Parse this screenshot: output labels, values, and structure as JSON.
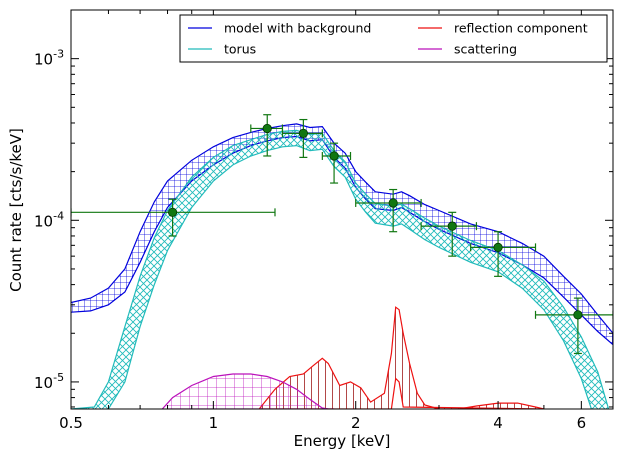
{
  "chart_data": {
    "type": "line",
    "title": "",
    "xlabel": "Energy [keV]",
    "ylabel": "Count rate [cts/s/keV]",
    "x_scale": "log",
    "y_scale": "log",
    "xlim": [
      0.5,
      7.0
    ],
    "ylim": [
      6.8e-06,
      0.002
    ],
    "grid": false,
    "legend_position": "top-right",
    "x_ticks": [
      {
        "value": 0.5,
        "label": "0.5"
      },
      {
        "value": 1,
        "label": "1"
      },
      {
        "value": 2,
        "label": "2"
      },
      {
        "value": 4,
        "label": "4"
      },
      {
        "value": 6,
        "label": "6"
      }
    ],
    "y_ticks": [
      {
        "value": 1e-05,
        "label": "10",
        "exp": "-5"
      },
      {
        "value": 0.0001,
        "label": "10",
        "exp": "-4"
      },
      {
        "value": 0.001,
        "label": "10",
        "exp": "-3"
      }
    ],
    "series": [
      {
        "name": "model with background",
        "kind": "band",
        "color": "#0000dd",
        "hatch": "grid",
        "upper": [
          [
            0.5,
            3.1e-05
          ],
          [
            0.55,
            3.3e-05
          ],
          [
            0.6,
            3.8e-05
          ],
          [
            0.65,
            5e-05
          ],
          [
            0.7,
            8.5e-05
          ],
          [
            0.75,
            0.00013
          ],
          [
            0.8,
            0.000175
          ],
          [
            0.9,
            0.000235
          ],
          [
            1.0,
            0.000285
          ],
          [
            1.1,
            0.000325
          ],
          [
            1.2,
            0.00035
          ],
          [
            1.3,
            0.00037
          ],
          [
            1.4,
            0.000385
          ],
          [
            1.5,
            0.000395
          ],
          [
            1.6,
            0.000375
          ],
          [
            1.7,
            0.00038
          ],
          [
            1.8,
            0.0003
          ],
          [
            1.9,
            0.00026
          ],
          [
            2.0,
            0.0002
          ],
          [
            2.1,
            0.000172
          ],
          [
            2.2,
            0.00015
          ],
          [
            2.4,
            0.000145
          ],
          [
            2.5,
            0.00015
          ],
          [
            2.6,
            0.000142
          ],
          [
            2.8,
            0.000125
          ],
          [
            3.0,
            0.000115
          ],
          [
            3.5,
            9.5e-05
          ],
          [
            4.0,
            8.5e-05
          ],
          [
            4.5,
            7.2e-05
          ],
          [
            5.0,
            6e-05
          ],
          [
            5.5,
            4.5e-05
          ],
          [
            6.0,
            3.5e-05
          ],
          [
            6.5,
            2.6e-05
          ],
          [
            7.0,
            2e-05
          ]
        ],
        "lower": [
          [
            0.5,
            2.7e-05
          ],
          [
            0.55,
            2.75e-05
          ],
          [
            0.6,
            3e-05
          ],
          [
            0.65,
            3.6e-05
          ],
          [
            0.7,
            5.5e-05
          ],
          [
            0.75,
            8.5e-05
          ],
          [
            0.8,
            0.00012
          ],
          [
            0.9,
            0.000175
          ],
          [
            1.0,
            0.00022
          ],
          [
            1.1,
            0.00026
          ],
          [
            1.2,
            0.00029
          ],
          [
            1.3,
            0.00031
          ],
          [
            1.4,
            0.000325
          ],
          [
            1.5,
            0.00033
          ],
          [
            1.6,
            0.00031
          ],
          [
            1.7,
            0.000315
          ],
          [
            1.8,
            0.000245
          ],
          [
            1.9,
            0.00021
          ],
          [
            2.0,
            0.00016
          ],
          [
            2.1,
            0.000135
          ],
          [
            2.2,
            0.000118
          ],
          [
            2.4,
            0.000115
          ],
          [
            2.5,
            0.00012
          ],
          [
            2.6,
            0.000112
          ],
          [
            2.8,
            9.8e-05
          ],
          [
            3.0,
            8.8e-05
          ],
          [
            3.5,
            7.2e-05
          ],
          [
            4.0,
            6.3e-05
          ],
          [
            4.5,
            5.3e-05
          ],
          [
            5.0,
            4.4e-05
          ],
          [
            5.5,
            3.35e-05
          ],
          [
            6.0,
            2.6e-05
          ],
          [
            6.5,
            2.05e-05
          ],
          [
            7.0,
            1.7e-05
          ]
        ]
      },
      {
        "name": "torus",
        "kind": "band",
        "color": "#22bbbb",
        "hatch": "cross",
        "upper": [
          [
            0.5,
            6.8e-06
          ],
          [
            0.56,
            7e-06
          ],
          [
            0.6,
            1e-05
          ],
          [
            0.65,
            2.2e-05
          ],
          [
            0.7,
            4.5e-05
          ],
          [
            0.75,
            7.8e-05
          ],
          [
            0.8,
            0.000115
          ],
          [
            0.9,
            0.000185
          ],
          [
            1.0,
            0.000245
          ],
          [
            1.1,
            0.00029
          ],
          [
            1.2,
            0.000315
          ],
          [
            1.3,
            0.00034
          ],
          [
            1.4,
            0.000355
          ],
          [
            1.5,
            0.00036
          ],
          [
            1.6,
            0.00034
          ],
          [
            1.7,
            0.000345
          ],
          [
            1.8,
            0.00027
          ],
          [
            1.9,
            0.00023
          ],
          [
            2.0,
            0.00017
          ],
          [
            2.1,
            0.000145
          ],
          [
            2.2,
            0.000127
          ],
          [
            2.4,
            0.000122
          ],
          [
            2.5,
            0.000126
          ],
          [
            2.6,
            0.000118
          ],
          [
            2.8,
            0.000103
          ],
          [
            3.0,
            9.2e-05
          ],
          [
            3.5,
            7.5e-05
          ],
          [
            4.0,
            6.5e-05
          ],
          [
            4.5,
            5.3e-05
          ],
          [
            5.0,
            4.2e-05
          ],
          [
            5.5,
            2.9e-05
          ],
          [
            6.0,
            1.9e-05
          ],
          [
            6.5,
            1.15e-05
          ],
          [
            6.85,
            6.8e-06
          ]
        ],
        "lower": [
          [
            0.6,
            6.8e-06
          ],
          [
            0.65,
            1e-05
          ],
          [
            0.7,
            2.2e-05
          ],
          [
            0.75,
            4e-05
          ],
          [
            0.8,
            6.5e-05
          ],
          [
            0.9,
            0.00012
          ],
          [
            1.0,
            0.000175
          ],
          [
            1.1,
            0.00022
          ],
          [
            1.2,
            0.00025
          ],
          [
            1.3,
            0.00027
          ],
          [
            1.4,
            0.000285
          ],
          [
            1.5,
            0.00029
          ],
          [
            1.6,
            0.00027
          ],
          [
            1.7,
            0.000275
          ],
          [
            1.8,
            0.000215
          ],
          [
            1.9,
            0.000185
          ],
          [
            2.0,
            0.000135
          ],
          [
            2.1,
            0.000112
          ],
          [
            2.2,
            9.6e-05
          ],
          [
            2.4,
            9.2e-05
          ],
          [
            2.5,
            9.5e-05
          ],
          [
            2.6,
            8.8e-05
          ],
          [
            2.8,
            7.6e-05
          ],
          [
            3.0,
            6.8e-05
          ],
          [
            3.5,
            5.5e-05
          ],
          [
            4.0,
            4.8e-05
          ],
          [
            4.5,
            3.8e-05
          ],
          [
            5.0,
            2.8e-05
          ],
          [
            5.5,
            1.8e-05
          ],
          [
            6.0,
            1.05e-05
          ],
          [
            6.3,
            6.8e-06
          ]
        ]
      },
      {
        "name": "reflection component",
        "kind": "band",
        "color": "#ee1111",
        "hatch": "vertical",
        "upper": [
          [
            1.25,
            6.8e-06
          ],
          [
            1.35,
            9e-06
          ],
          [
            1.45,
            1.08e-05
          ],
          [
            1.55,
            1.12e-05
          ],
          [
            1.62,
            1.25e-05
          ],
          [
            1.7,
            1.4e-05
          ],
          [
            1.75,
            1.3e-05
          ],
          [
            1.85,
            9.5e-06
          ],
          [
            1.95,
            1e-05
          ],
          [
            2.05,
            9.2e-06
          ],
          [
            2.15,
            7.5e-06
          ],
          [
            2.3,
            8.5e-06
          ],
          [
            2.38,
            1.5e-05
          ],
          [
            2.43,
            2.9e-05
          ],
          [
            2.47,
            2.8e-05
          ],
          [
            2.52,
            2e-05
          ],
          [
            2.6,
            1.3e-05
          ],
          [
            2.7,
            8.5e-06
          ],
          [
            2.8,
            7.2e-06
          ],
          [
            3.0,
            6.8e-06
          ],
          [
            3.3,
            6.8e-06
          ],
          [
            3.6,
            7.1e-06
          ],
          [
            4.0,
            7.4e-06
          ],
          [
            4.4,
            7.4e-06
          ],
          [
            4.8,
            7e-06
          ],
          [
            5.0,
            6.8e-06
          ]
        ],
        "lower": [
          [
            1.25,
            6.8e-06
          ],
          [
            2.38,
            6.8e-06
          ],
          [
            2.43,
            1.05e-05
          ],
          [
            2.47,
            1e-05
          ],
          [
            2.52,
            7e-06
          ],
          [
            5.0,
            6.8e-06
          ]
        ]
      },
      {
        "name": "scattering",
        "kind": "band",
        "color": "#bb11bb",
        "hatch": "grid",
        "upper": [
          [
            0.78,
            6.8e-06
          ],
          [
            0.82,
            8e-06
          ],
          [
            0.9,
            9.5e-06
          ],
          [
            1.0,
            1.08e-05
          ],
          [
            1.1,
            1.12e-05
          ],
          [
            1.2,
            1.12e-05
          ],
          [
            1.3,
            1.08e-05
          ],
          [
            1.4,
            1e-05
          ],
          [
            1.5,
            9e-06
          ],
          [
            1.6,
            7.8e-06
          ],
          [
            1.7,
            6.9e-06
          ],
          [
            1.75,
            6.8e-06
          ]
        ],
        "lower": [
          [
            0.8,
            6.8e-06
          ],
          [
            1.4,
            6.8e-06
          ],
          [
            1.8,
            6.8e-06
          ]
        ]
      }
    ],
    "data_points": {
      "color": "#117711",
      "points": [
        {
          "x": 0.82,
          "y": 0.000112,
          "xerr": [
            0.5,
            1.35
          ],
          "yerr": [
            8e-05,
            0.000135
          ]
        },
        {
          "x": 1.3,
          "y": 0.00037,
          "xerr": [
            1.2,
            1.4
          ],
          "yerr": [
            0.00025,
            0.00045
          ]
        },
        {
          "x": 1.55,
          "y": 0.000345,
          "xerr": [
            1.4,
            1.7
          ],
          "yerr": [
            0.000245,
            0.00042
          ]
        },
        {
          "x": 1.8,
          "y": 0.00025,
          "xerr": [
            1.7,
            1.95
          ],
          "yerr": [
            0.00017,
            0.0003
          ]
        },
        {
          "x": 2.4,
          "y": 0.000128,
          "xerr": [
            2.0,
            2.75
          ],
          "yerr": [
            8.5e-05,
            0.000155
          ]
        },
        {
          "x": 3.2,
          "y": 9.2e-05,
          "xerr": [
            2.75,
            3.6
          ],
          "yerr": [
            6e-05,
            0.000112
          ]
        },
        {
          "x": 4.0,
          "y": 6.8e-05,
          "xerr": [
            3.5,
            4.8
          ],
          "yerr": [
            4.5e-05,
            8.5e-05
          ]
        },
        {
          "x": 5.9,
          "y": 2.6e-05,
          "xerr": [
            4.8,
            7.0
          ],
          "yerr": [
            1.5e-05,
            3.3e-05
          ]
        }
      ]
    },
    "legend": [
      {
        "label": "model with background",
        "color": "#0000dd"
      },
      {
        "label": "reflection component",
        "color": "#ee1111"
      },
      {
        "label": "torus",
        "color": "#22bbbb"
      },
      {
        "label": "scattering",
        "color": "#bb11bb"
      }
    ]
  }
}
